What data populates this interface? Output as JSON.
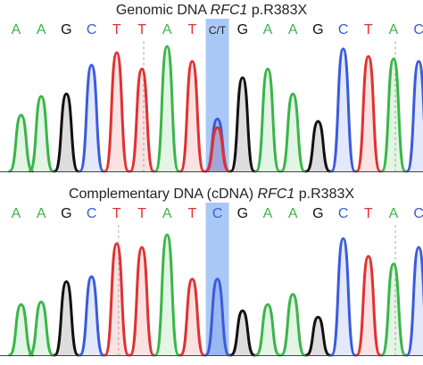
{
  "colors": {
    "A": "#3bb54a",
    "C": "#3b5bdb",
    "G": "#111111",
    "T": "#e03131",
    "highlight": "#a9c8f5"
  },
  "chart_data": [
    {
      "type": "line",
      "title_prefix": "Genomic DNA ",
      "gene": "RFC1",
      "title_suffix": " p.R383X",
      "bases": [
        "A",
        "A",
        "G",
        "C",
        "T",
        "T",
        "A",
        "T",
        "C/T",
        "G",
        "A",
        "A",
        "G",
        "C",
        "T",
        "A",
        "C"
      ],
      "highlight_index": 8,
      "dashed_marks_at": [
        5,
        15
      ],
      "peaks": [
        {
          "base": "A",
          "x": 0.2,
          "h": 0.45
        },
        {
          "base": "A",
          "x": 1.0,
          "h": 0.6
        },
        {
          "base": "G",
          "x": 2.0,
          "h": 0.62
        },
        {
          "base": "C",
          "x": 3.0,
          "h": 0.85
        },
        {
          "base": "T",
          "x": 4.0,
          "h": 0.95
        },
        {
          "base": "T",
          "x": 5.0,
          "h": 0.82
        },
        {
          "base": "A",
          "x": 6.0,
          "h": 1.0
        },
        {
          "base": "T",
          "x": 7.0,
          "h": 0.88
        },
        {
          "base": "C",
          "x": 8.0,
          "h": 0.42
        },
        {
          "base": "T",
          "x": 8.0,
          "h": 0.35
        },
        {
          "base": "G",
          "x": 9.0,
          "h": 0.75
        },
        {
          "base": "A",
          "x": 10.0,
          "h": 0.82
        },
        {
          "base": "A",
          "x": 11.0,
          "h": 0.62
        },
        {
          "base": "G",
          "x": 12.0,
          "h": 0.4
        },
        {
          "base": "C",
          "x": 13.0,
          "h": 0.98
        },
        {
          "base": "T",
          "x": 14.0,
          "h": 0.92
        },
        {
          "base": "A",
          "x": 15.0,
          "h": 0.9
        },
        {
          "base": "C",
          "x": 16.0,
          "h": 0.88
        }
      ]
    },
    {
      "type": "line",
      "title_prefix": "Complementary DNA (cDNA) ",
      "gene": "RFC1",
      "title_suffix": " p.R383X",
      "bases": [
        "A",
        "A",
        "G",
        "C",
        "T",
        "T",
        "A",
        "T",
        "C",
        "G",
        "A",
        "A",
        "G",
        "C",
        "T",
        "A",
        "C"
      ],
      "highlight_index": 8,
      "dashed_marks_at": [
        4,
        15
      ],
      "peaks": [
        {
          "base": "A",
          "x": 0.2,
          "h": 0.4
        },
        {
          "base": "A",
          "x": 1.0,
          "h": 0.42
        },
        {
          "base": "G",
          "x": 2.0,
          "h": 0.58
        },
        {
          "base": "C",
          "x": 3.0,
          "h": 0.62
        },
        {
          "base": "T",
          "x": 4.0,
          "h": 0.88
        },
        {
          "base": "T",
          "x": 5.0,
          "h": 0.85
        },
        {
          "base": "A",
          "x": 6.0,
          "h": 0.95
        },
        {
          "base": "T",
          "x": 7.0,
          "h": 0.6
        },
        {
          "base": "C",
          "x": 8.0,
          "h": 0.6
        },
        {
          "base": "G",
          "x": 9.0,
          "h": 0.35
        },
        {
          "base": "A",
          "x": 10.0,
          "h": 0.4
        },
        {
          "base": "A",
          "x": 11.0,
          "h": 0.48
        },
        {
          "base": "G",
          "x": 12.0,
          "h": 0.3
        },
        {
          "base": "C",
          "x": 13.0,
          "h": 0.92
        },
        {
          "base": "T",
          "x": 14.0,
          "h": 0.78
        },
        {
          "base": "A",
          "x": 15.0,
          "h": 0.72
        },
        {
          "base": "C",
          "x": 16.0,
          "h": 0.85
        }
      ]
    }
  ]
}
